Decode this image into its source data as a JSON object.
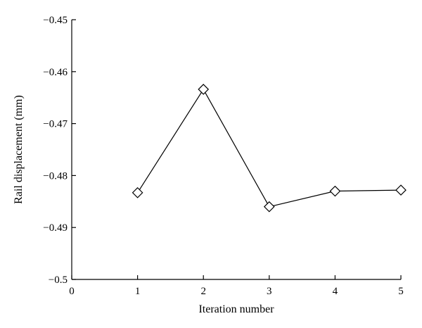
{
  "chart_data": {
    "type": "line",
    "xlabel": "Iteration number",
    "ylabel": "Rail displacement (mm)",
    "xlim": [
      0,
      5
    ],
    "ylim": [
      -0.5,
      -0.45
    ],
    "x_ticks": [
      "0",
      "1",
      "2",
      "3",
      "4",
      "5"
    ],
    "y_ticks": [
      "−0.45",
      "−0.46",
      "−0.47",
      "−0.48",
      "−0.49",
      "−0.5"
    ],
    "grid": false,
    "marker": "diamond-open",
    "series": [
      {
        "x": [
          1,
          2,
          3,
          4,
          5
        ],
        "y": [
          -0.4833,
          -0.4634,
          -0.486,
          -0.483,
          -0.4828
        ]
      }
    ],
    "colors": {
      "line": "#000000",
      "marker_fill": "#ffffff"
    }
  }
}
